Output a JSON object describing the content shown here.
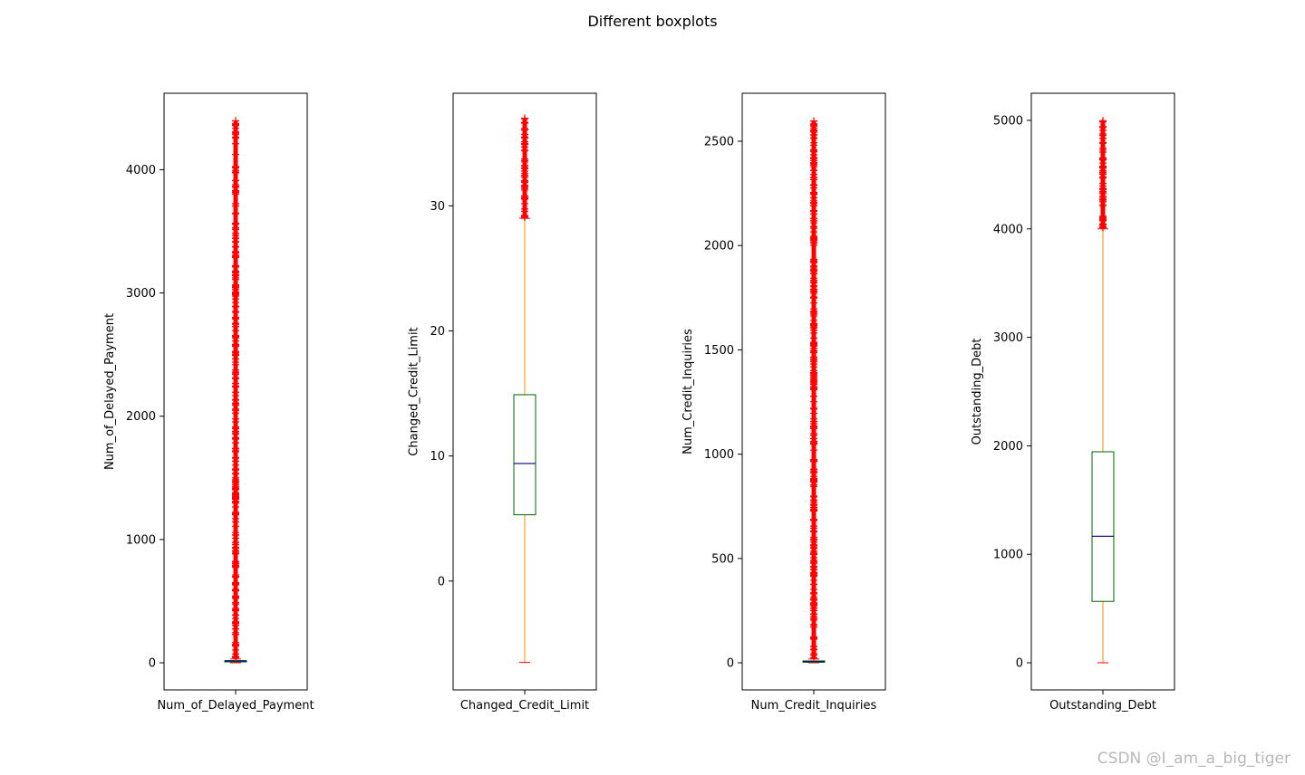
{
  "figure": {
    "suptitle": "Different boxplots",
    "watermark": "CSDN @I_am_a_big_tiger"
  },
  "colors": {
    "box": "#006400",
    "median": "#00008b",
    "whisker": "#ff8c00",
    "cap": "#ff0000",
    "flier": "#ff0000"
  },
  "chart_data": [
    {
      "type": "box",
      "category": "Num_of_Delayed_Payment",
      "ylabel": "Num_of_Delayed_Payment",
      "ylim": [
        -220,
        4620
      ],
      "yticks": [
        0,
        1000,
        2000,
        3000,
        4000
      ],
      "q1": 9,
      "median": 14,
      "q3": 18,
      "whisker_low": 0,
      "whisker_high": 31,
      "flier_range": [
        31,
        4397
      ]
    },
    {
      "type": "box",
      "category": "Changed_Credit_Limit",
      "ylabel": "Changed_Credit_Limit",
      "ylim": [
        -8.7,
        39.0
      ],
      "yticks": [
        0,
        10,
        20,
        30
      ],
      "q1": 5.3,
      "median": 9.4,
      "q3": 14.9,
      "whisker_low": -6.5,
      "whisker_high": 29.0,
      "flier_range": [
        29.0,
        37.0
      ]
    },
    {
      "type": "box",
      "category": "Num_Credit_Inquiries",
      "ylabel": "Num_Credit_Inquiries",
      "ylim": [
        -130,
        2730
      ],
      "yticks": [
        0,
        500,
        1000,
        1500,
        2000,
        2500
      ],
      "q1": 3,
      "median": 6,
      "q3": 9,
      "whisker_low": 0,
      "whisker_high": 18,
      "flier_range": [
        18,
        2597
      ]
    },
    {
      "type": "box",
      "category": "Outstanding_Debt",
      "ylabel": "Outstanding_Debt",
      "ylim": [
        -250,
        5250
      ],
      "yticks": [
        0,
        1000,
        2000,
        3000,
        4000,
        5000
      ],
      "q1": 566,
      "median": 1166,
      "q3": 1945,
      "whisker_low": 0,
      "whisker_high": 4000,
      "flier_range": [
        4000,
        4998
      ]
    }
  ]
}
